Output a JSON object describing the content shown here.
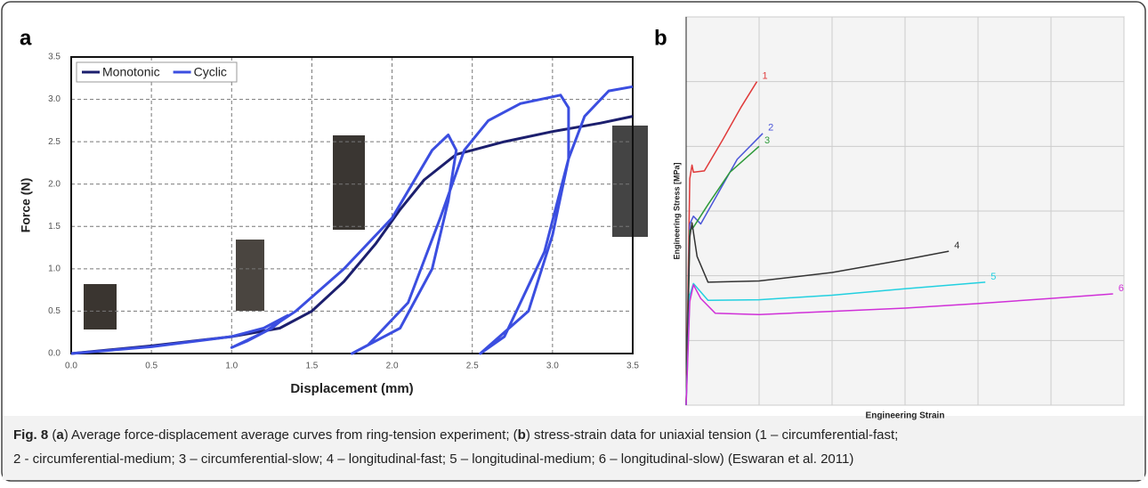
{
  "chart_data": [
    {
      "type": "line",
      "panel": "a",
      "xlabel": "Displacement (mm)",
      "ylabel": "Force (N)",
      "xlim": [
        0,
        3.5
      ],
      "ylim": [
        0,
        3.5
      ],
      "grid": true,
      "legend": "top-left",
      "xticks": [
        {
          "value": 0,
          "label": "0.0"
        },
        {
          "value": 0.5,
          "label": "0.5"
        },
        {
          "value": 1,
          "label": "1.0"
        },
        {
          "value": 1.5,
          "label": "1.5"
        },
        {
          "value": 2,
          "label": "2.0"
        },
        {
          "value": 2.5,
          "label": "2.5"
        },
        {
          "value": 3,
          "label": "3.0"
        },
        {
          "value": 3.5,
          "label": "3.5"
        }
      ],
      "yticks": [
        {
          "value": 0,
          "label": "0.0"
        },
        {
          "value": 0.5,
          "label": "0.5"
        },
        {
          "value": 1,
          "label": "1.0"
        },
        {
          "value": 1.5,
          "label": "1.5"
        },
        {
          "value": 2,
          "label": "2.0"
        },
        {
          "value": 2.5,
          "label": "2.5"
        },
        {
          "value": 3,
          "label": "3.0"
        },
        {
          "value": 3.5,
          "label": "3.5"
        }
      ],
      "series": [
        {
          "name": "Monotonic",
          "color": "#1c1f6e",
          "x": [
            0,
            0.5,
            1,
            1.3,
            1.5,
            1.7,
            1.9,
            2.05,
            2.2,
            2.4,
            2.7,
            3.0,
            3.3,
            3.5
          ],
          "values": [
            0,
            0.09,
            0.2,
            0.3,
            0.5,
            0.85,
            1.3,
            1.7,
            2.05,
            2.35,
            2.5,
            2.62,
            2.72,
            2.8
          ]
        },
        {
          "name": "Cyclic",
          "color": "#3b4ee0",
          "x": [
            0,
            0.5,
            1.0,
            1.2,
            1.35,
            1.25,
            1.1,
            1.0,
            1.2,
            1.4,
            1.7,
            2.0,
            2.25,
            2.35,
            2.4,
            2.35,
            2.25,
            2.05,
            1.75,
            1.85,
            2.1,
            2.3,
            2.45,
            2.6,
            2.8,
            3.05,
            3.1,
            3.1,
            3.0,
            2.85,
            2.55,
            2.7,
            2.95,
            3.1,
            3.2,
            3.35,
            3.5
          ],
          "values": [
            0,
            0.08,
            0.2,
            0.3,
            0.45,
            0.3,
            0.15,
            0.07,
            0.25,
            0.5,
            1.0,
            1.6,
            2.4,
            2.58,
            2.4,
            1.8,
            1.0,
            0.3,
            0,
            0.1,
            0.6,
            1.6,
            2.4,
            2.75,
            2.95,
            3.05,
            2.9,
            2.3,
            1.4,
            0.5,
            0,
            0.2,
            1.2,
            2.3,
            2.8,
            3.1,
            3.15
          ]
        }
      ]
    },
    {
      "type": "line",
      "panel": "b",
      "xlabel": "Engineering Strain",
      "ylabel": "Engineering Stress [MPa]",
      "xlim": [
        0,
        6
      ],
      "ylim": [
        0,
        6
      ],
      "grid": true,
      "xticks": [
        0,
        1,
        2,
        3,
        4,
        5,
        6
      ],
      "yticks": [
        0,
        1,
        2,
        3,
        4,
        5,
        6
      ],
      "series": [
        {
          "name": "1",
          "color": "#e03a3a",
          "x": [
            0,
            0.05,
            0.08,
            0.1,
            0.25,
            0.5,
            0.75,
            0.97
          ],
          "values": [
            0,
            3.5,
            3.71,
            3.6,
            3.62,
            4.1,
            4.6,
            5.0
          ]
        },
        {
          "name": "2",
          "color": "#4a55d8",
          "x": [
            0,
            0.05,
            0.1,
            0.2,
            0.4,
            0.7,
            1.05
          ],
          "values": [
            0,
            2.8,
            2.92,
            2.8,
            3.2,
            3.8,
            4.2
          ]
        },
        {
          "name": "3",
          "color": "#2e9a3a",
          "x": [
            0,
            0.05,
            0.1,
            0.3,
            0.6,
            1.0
          ],
          "values": [
            0,
            2.7,
            2.75,
            3.1,
            3.6,
            4.0
          ]
        },
        {
          "name": "4",
          "color": "#333333",
          "x": [
            0,
            0.05,
            0.08,
            0.15,
            0.3,
            1.0,
            2.0,
            3.0,
            3.6
          ],
          "values": [
            0,
            2.6,
            2.82,
            2.3,
            1.9,
            1.92,
            2.05,
            2.25,
            2.38
          ]
        },
        {
          "name": "5",
          "color": "#22d0e0",
          "x": [
            0,
            0.05,
            0.1,
            0.3,
            1,
            2,
            3,
            4.1
          ],
          "values": [
            0,
            1.7,
            1.88,
            1.62,
            1.63,
            1.7,
            1.8,
            1.9
          ]
        },
        {
          "name": "6",
          "color": "#d030d8",
          "x": [
            0,
            0.05,
            0.1,
            0.2,
            0.4,
            1,
            2,
            3,
            4,
            5,
            5.85
          ],
          "values": [
            0,
            1.6,
            1.86,
            1.65,
            1.42,
            1.4,
            1.45,
            1.5,
            1.57,
            1.65,
            1.72
          ]
        }
      ]
    }
  ],
  "caption": {
    "label": "Fig. 8",
    "parts": [
      "(",
      "a",
      ") Average force-displacement average curves from ring-tension experiment; (",
      "b",
      ") stress-strain data for uniaxial tension (1 – circumferential-fast;",
      "2 - circumferential-medium; 3 – circumferential-slow; 4 – longitudinal-fast; 5 – longitudinal-medium; 6 – longitudinal-slow) (Eswaran et al. 2011)"
    ]
  }
}
